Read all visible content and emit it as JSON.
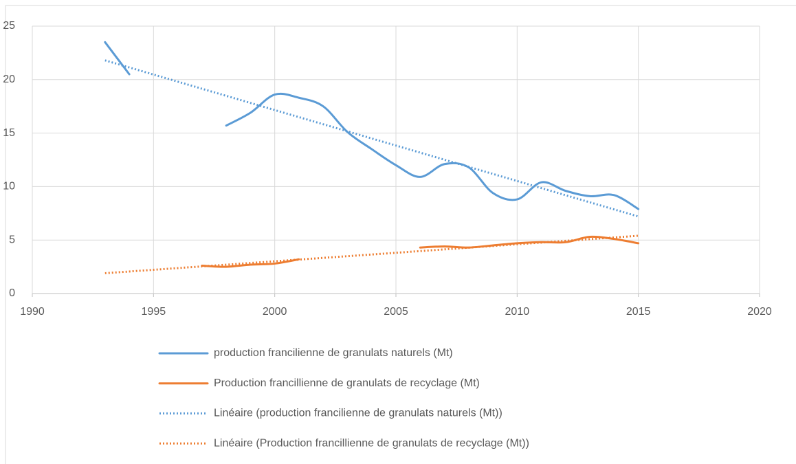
{
  "chart_data": {
    "type": "line",
    "xlim": [
      1990,
      2020
    ],
    "xticks": [
      1990,
      1995,
      2000,
      2005,
      2010,
      2015,
      2020
    ],
    "ylim": [
      0,
      25
    ],
    "yticks": [
      0,
      5,
      10,
      15,
      20,
      25
    ],
    "grid": true,
    "smooth": true,
    "legend": "bottom",
    "series": [
      {
        "name": "production francilienne de granulats naturels (Mt)",
        "color": "#5b9bd5",
        "style": "solid",
        "x": [
          1993,
          1994,
          1995,
          1996,
          1997,
          1998,
          1999,
          2000,
          2001,
          2002,
          2003,
          2004,
          2005,
          2006,
          2007,
          2008,
          2009,
          2010,
          2011,
          2012,
          2013,
          2014,
          2015
        ],
        "values": [
          23.5,
          20.5,
          null,
          null,
          null,
          15.7,
          16.9,
          18.6,
          18.3,
          17.5,
          15.1,
          13.5,
          12.0,
          10.9,
          12.1,
          11.8,
          9.4,
          8.8,
          10.4,
          9.6,
          9.1,
          9.2,
          7.9
        ]
      },
      {
        "name": "Production francillienne de granulats de recyclage (Mt)",
        "color": "#ed7d31",
        "style": "solid",
        "x": [
          1997,
          1998,
          1999,
          2000,
          2001,
          2002,
          2003,
          2004,
          2005,
          2006,
          2007,
          2008,
          2009,
          2010,
          2011,
          2012,
          2013,
          2014,
          2015
        ],
        "values": [
          2.6,
          2.5,
          2.7,
          2.8,
          3.2,
          null,
          null,
          null,
          null,
          4.3,
          4.4,
          4.3,
          4.5,
          4.7,
          4.8,
          4.8,
          5.3,
          5.1,
          4.7
        ]
      },
      {
        "name": "Linéaire (production francilienne de granulats naturels (Mt))",
        "color": "#5b9bd5",
        "style": "dotted",
        "x": [
          1993,
          2015
        ],
        "values": [
          21.8,
          7.2
        ]
      },
      {
        "name": "Linéaire (Production francillienne de granulats de recyclage (Mt))",
        "color": "#ed7d31",
        "style": "dotted",
        "x": [
          1993,
          2015
        ],
        "values": [
          1.9,
          5.4
        ]
      }
    ]
  }
}
